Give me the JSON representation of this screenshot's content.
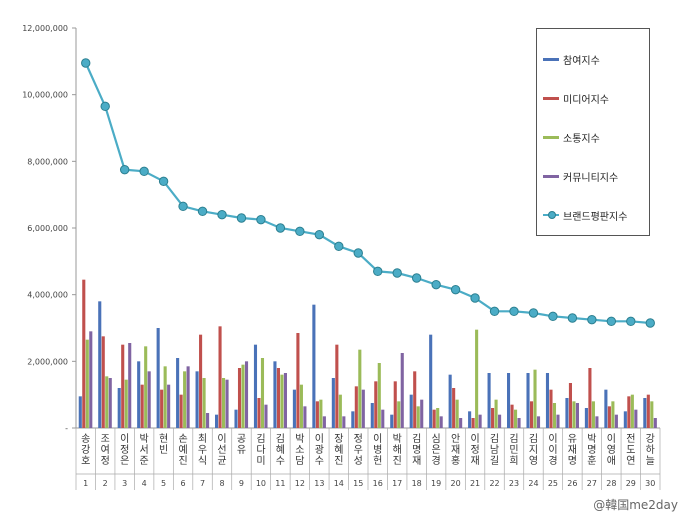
{
  "chart_data": {
    "type": "bar",
    "ylim": [
      0,
      12000000
    ],
    "yticks": [
      "-",
      "2,000,000",
      "4,000,000",
      "6,000,000",
      "8,000,000",
      "10,000,000",
      "12,000,000"
    ],
    "grid": false,
    "legend_position": "top-right",
    "categories": [
      "송강호",
      "조여정",
      "이정은",
      "박서준",
      "현빈",
      "손예진",
      "최우식",
      "이선균",
      "공유",
      "김다미",
      "김혜수",
      "박소담",
      "이광수",
      "장혜진",
      "정우성",
      "이병헌",
      "박해진",
      "김명재",
      "심은경",
      "안재홍",
      "이정재",
      "김남길",
      "김민희",
      "김지영",
      "이이경",
      "유재명",
      "박명훈",
      "이영애",
      "전도연",
      "강하늘"
    ],
    "ranks": [
      "1",
      "2",
      "3",
      "4",
      "5",
      "6",
      "7",
      "8",
      "9",
      "10",
      "11",
      "12",
      "13",
      "14",
      "15",
      "16",
      "17",
      "18",
      "19",
      "20",
      "21",
      "22",
      "23",
      "24",
      "25",
      "26",
      "27",
      "28",
      "29",
      "30"
    ],
    "series": [
      {
        "name": "참여지수",
        "color": "#4a72b8",
        "kind": "bar",
        "values": [
          950000,
          3800000,
          1200000,
          2000000,
          3000000,
          2100000,
          1700000,
          400000,
          550000,
          2500000,
          2000000,
          1150000,
          3700000,
          1500000,
          500000,
          750000,
          400000,
          1000000,
          2800000,
          1600000,
          500000,
          1650000,
          1650000,
          1650000,
          1650000,
          900000,
          600000,
          1150000,
          500000,
          900000
        ]
      },
      {
        "name": "미디어지수",
        "color": "#c0504d",
        "kind": "bar",
        "values": [
          4450000,
          2750000,
          2500000,
          1300000,
          1150000,
          1000000,
          2800000,
          3050000,
          1800000,
          900000,
          1800000,
          2850000,
          800000,
          2500000,
          1250000,
          1400000,
          1400000,
          1700000,
          550000,
          1200000,
          300000,
          600000,
          700000,
          800000,
          1150000,
          1350000,
          1800000,
          650000,
          950000,
          1000000
        ]
      },
      {
        "name": "소통지수",
        "color": "#9bbb59",
        "kind": "bar",
        "values": [
          2650000,
          1550000,
          1450000,
          2450000,
          1850000,
          1700000,
          1500000,
          1500000,
          1900000,
          2100000,
          1600000,
          1300000,
          850000,
          1000000,
          2350000,
          1950000,
          800000,
          650000,
          600000,
          850000,
          2950000,
          850000,
          550000,
          1750000,
          750000,
          800000,
          800000,
          800000,
          1000000,
          800000
        ]
      },
      {
        "name": "커뮤니티지수",
        "color": "#8064a2",
        "kind": "bar",
        "values": [
          2900000,
          1500000,
          2550000,
          1700000,
          1300000,
          1850000,
          450000,
          1450000,
          2000000,
          700000,
          1650000,
          650000,
          350000,
          350000,
          1150000,
          550000,
          2250000,
          850000,
          350000,
          300000,
          400000,
          400000,
          300000,
          350000,
          400000,
          750000,
          350000,
          400000,
          550000,
          300000
        ]
      },
      {
        "name": "브랜드평판지수",
        "color": "#4bacc6",
        "kind": "line",
        "values": [
          10950000,
          9650000,
          7750000,
          7700000,
          7400000,
          6650000,
          6500000,
          6400000,
          6300000,
          6250000,
          6000000,
          5900000,
          5800000,
          5450000,
          5250000,
          4700000,
          4650000,
          4500000,
          4300000,
          4150000,
          3900000,
          3500000,
          3500000,
          3450000,
          3350000,
          3300000,
          3250000,
          3200000,
          3200000,
          3150000
        ]
      }
    ]
  },
  "watermark": "@韓国me2day"
}
